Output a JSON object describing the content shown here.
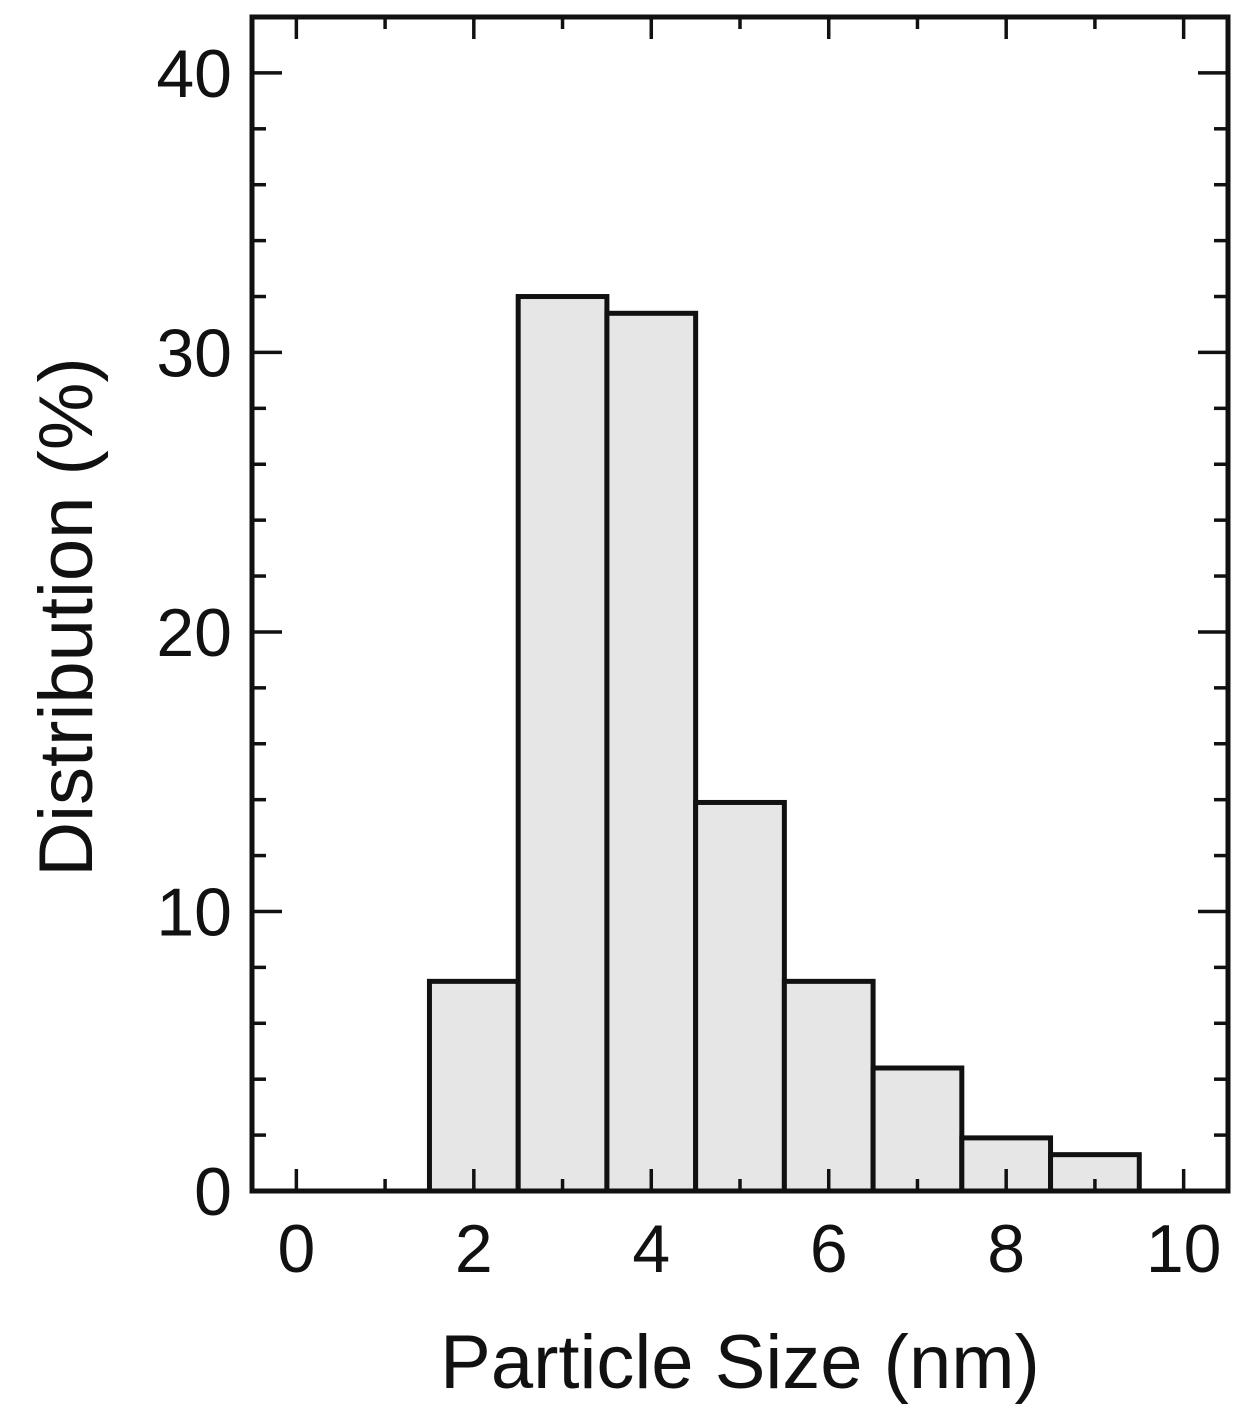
{
  "chart_data": {
    "type": "bar",
    "xlabel": "Particle Size (nm)",
    "ylabel": "Distribution (%)",
    "xlim": [
      -0.5,
      10.5
    ],
    "ylim": [
      0,
      42
    ],
    "x_ticks": [
      "0",
      "2",
      "4",
      "6",
      "8",
      "10"
    ],
    "y_ticks": [
      "0",
      "10",
      "20",
      "30",
      "40"
    ],
    "bin_width": 1,
    "x": [
      2,
      3,
      4,
      5,
      6,
      7,
      8,
      9
    ],
    "values": [
      7.5,
      32.0,
      31.4,
      13.9,
      7.5,
      4.4,
      1.9,
      1.3
    ],
    "bar_fill": "#e6e6e6",
    "bar_stroke": "#111111",
    "grid": false,
    "legend": "none"
  }
}
